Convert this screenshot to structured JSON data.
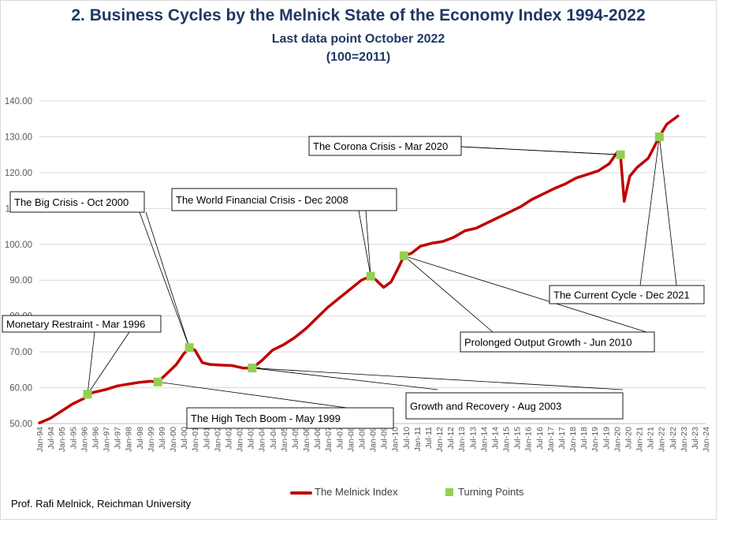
{
  "title": "2.  Business Cycles by the Melnick State of the Economy Index 1994-2022",
  "subtitle1": "Last data point October 2022",
  "subtitle2": "(100=2011)",
  "credit": "Prof. Rafi Melnick, Reichman University",
  "legend": {
    "series_label": "The Melnick Index",
    "points_label": "Turning Points"
  },
  "colors": {
    "series": "#c00000",
    "points": "#92d050",
    "title": "#1f3864",
    "grid": "#d9d9d9"
  },
  "chart_data": {
    "type": "line",
    "title": "2.  Business Cycles by the Melnick State of the Economy Index 1994-2022",
    "xlabel": "",
    "ylabel": "",
    "ylim": [
      50,
      140
    ],
    "xlim": [
      "1994-01",
      "2024-01"
    ],
    "y_ticks": [
      "50.00",
      "60.00",
      "70.00",
      "80.00",
      "90.00",
      "100.00",
      "110.00",
      "120.00",
      "130.00",
      "140.00"
    ],
    "x_ticks": [
      "Jan-94",
      "Jul-94",
      "Jan-95",
      "Jul-95",
      "Jan-96",
      "Jul-96",
      "Jan-97",
      "Jul-97",
      "Jan-98",
      "Jul-98",
      "Jan-99",
      "Jul-99",
      "Jan-00",
      "Jul-00",
      "Jan-01",
      "Jul-01",
      "Jan-02",
      "Jul-02",
      "Jan-03",
      "Jul-03",
      "Jan-04",
      "Jul-04",
      "Jan-05",
      "Jul-05",
      "Jan-06",
      "Jul-06",
      "Jan-07",
      "Jul-07",
      "Jan-08",
      "Jul-08",
      "Jan-09",
      "Jul-09",
      "Jan-10",
      "Jul-10",
      "Jan-11",
      "Jul-11",
      "Jan-12",
      "Jul-12",
      "Jan-13",
      "Jul-13",
      "Jan-14",
      "Jul-14",
      "Jan-15",
      "Jul-15",
      "Jan-16",
      "Jul-16",
      "Jan-17",
      "Jul-17",
      "Jan-18",
      "Jul-18",
      "Jan-19",
      "Jul-19",
      "Jan-20",
      "Jul-20",
      "Jan-21",
      "Jul-21",
      "Jan-22",
      "Jul-22",
      "Jan-23",
      "Jul-23",
      "Jan-24"
    ],
    "grid": true,
    "legend_position": "bottom",
    "series": [
      {
        "name": "The Melnick Index",
        "points": [
          [
            "1994-01",
            50.2
          ],
          [
            "1994-07",
            51.5
          ],
          [
            "1995-01",
            53.5
          ],
          [
            "1995-07",
            55.5
          ],
          [
            "1996-01",
            57.0
          ],
          [
            "1996-03",
            58.2
          ],
          [
            "1996-07",
            58.8
          ],
          [
            "1997-01",
            59.5
          ],
          [
            "1997-07",
            60.5
          ],
          [
            "1998-01",
            61.0
          ],
          [
            "1998-07",
            61.5
          ],
          [
            "1999-01",
            61.8
          ],
          [
            "1999-05",
            61.6
          ],
          [
            "1999-10",
            64.0
          ],
          [
            "2000-03",
            66.5
          ],
          [
            "2000-07",
            69.5
          ],
          [
            "2000-10",
            71.2
          ],
          [
            "2001-01",
            70.5
          ],
          [
            "2001-05",
            67.0
          ],
          [
            "2001-09",
            66.5
          ],
          [
            "2002-03",
            66.3
          ],
          [
            "2002-09",
            66.2
          ],
          [
            "2003-03",
            65.5
          ],
          [
            "2003-08",
            65.5
          ],
          [
            "2004-01",
            67.5
          ],
          [
            "2004-07",
            70.5
          ],
          [
            "2005-01",
            72.0
          ],
          [
            "2005-07",
            74.0
          ],
          [
            "2006-01",
            76.5
          ],
          [
            "2006-07",
            79.5
          ],
          [
            "2007-01",
            82.5
          ],
          [
            "2007-07",
            85.0
          ],
          [
            "2008-01",
            87.5
          ],
          [
            "2008-07",
            90.0
          ],
          [
            "2008-12",
            91.1
          ],
          [
            "2009-03",
            90.0
          ],
          [
            "2009-07",
            88.0
          ],
          [
            "2009-11",
            89.5
          ],
          [
            "2010-03",
            93.5
          ],
          [
            "2010-06",
            96.8
          ],
          [
            "2010-10",
            97.5
          ],
          [
            "2011-03",
            99.5
          ],
          [
            "2011-09",
            100.3
          ],
          [
            "2012-03",
            100.8
          ],
          [
            "2012-09",
            102.0
          ],
          [
            "2013-03",
            103.8
          ],
          [
            "2013-09",
            104.5
          ],
          [
            "2014-03",
            106.0
          ],
          [
            "2014-09",
            107.5
          ],
          [
            "2015-03",
            109.0
          ],
          [
            "2015-09",
            110.5
          ],
          [
            "2016-03",
            112.5
          ],
          [
            "2016-09",
            114.0
          ],
          [
            "2017-03",
            115.5
          ],
          [
            "2017-09",
            116.8
          ],
          [
            "2018-03",
            118.5
          ],
          [
            "2018-09",
            119.5
          ],
          [
            "2019-03",
            120.5
          ],
          [
            "2019-09",
            122.5
          ],
          [
            "2020-01",
            125.5
          ],
          [
            "2020-03",
            125.0
          ],
          [
            "2020-05",
            112.0
          ],
          [
            "2020-08",
            119.0
          ],
          [
            "2020-12",
            121.5
          ],
          [
            "2021-06",
            124.0
          ],
          [
            "2021-12",
            130.0
          ],
          [
            "2022-04",
            133.5
          ],
          [
            "2022-10",
            135.8
          ]
        ]
      }
    ],
    "turning_points": [
      {
        "date": "1996-03",
        "value": 58.2,
        "label": "Monetary Restraint - Mar 1996"
      },
      {
        "date": "1999-05",
        "value": 61.6,
        "label": "The High  Tech Boom - May 1999"
      },
      {
        "date": "2000-10",
        "value": 71.2,
        "label": "The Big Crisis - Oct 2000"
      },
      {
        "date": "2003-08",
        "value": 65.5,
        "label": "Growth and Recovery - Aug 2003"
      },
      {
        "date": "2008-12",
        "value": 91.1,
        "label": "The World Financial Crisis - Dec 2008"
      },
      {
        "date": "2010-06",
        "value": 96.8,
        "label": "Prolonged Output Growth - Jun 2010"
      },
      {
        "date": "2020-03",
        "value": 125.0,
        "label": "The Corona Crisis - Mar 2020"
      },
      {
        "date": "2021-12",
        "value": 130.0,
        "label": "The Current Cycle - Dec 2021"
      }
    ]
  }
}
